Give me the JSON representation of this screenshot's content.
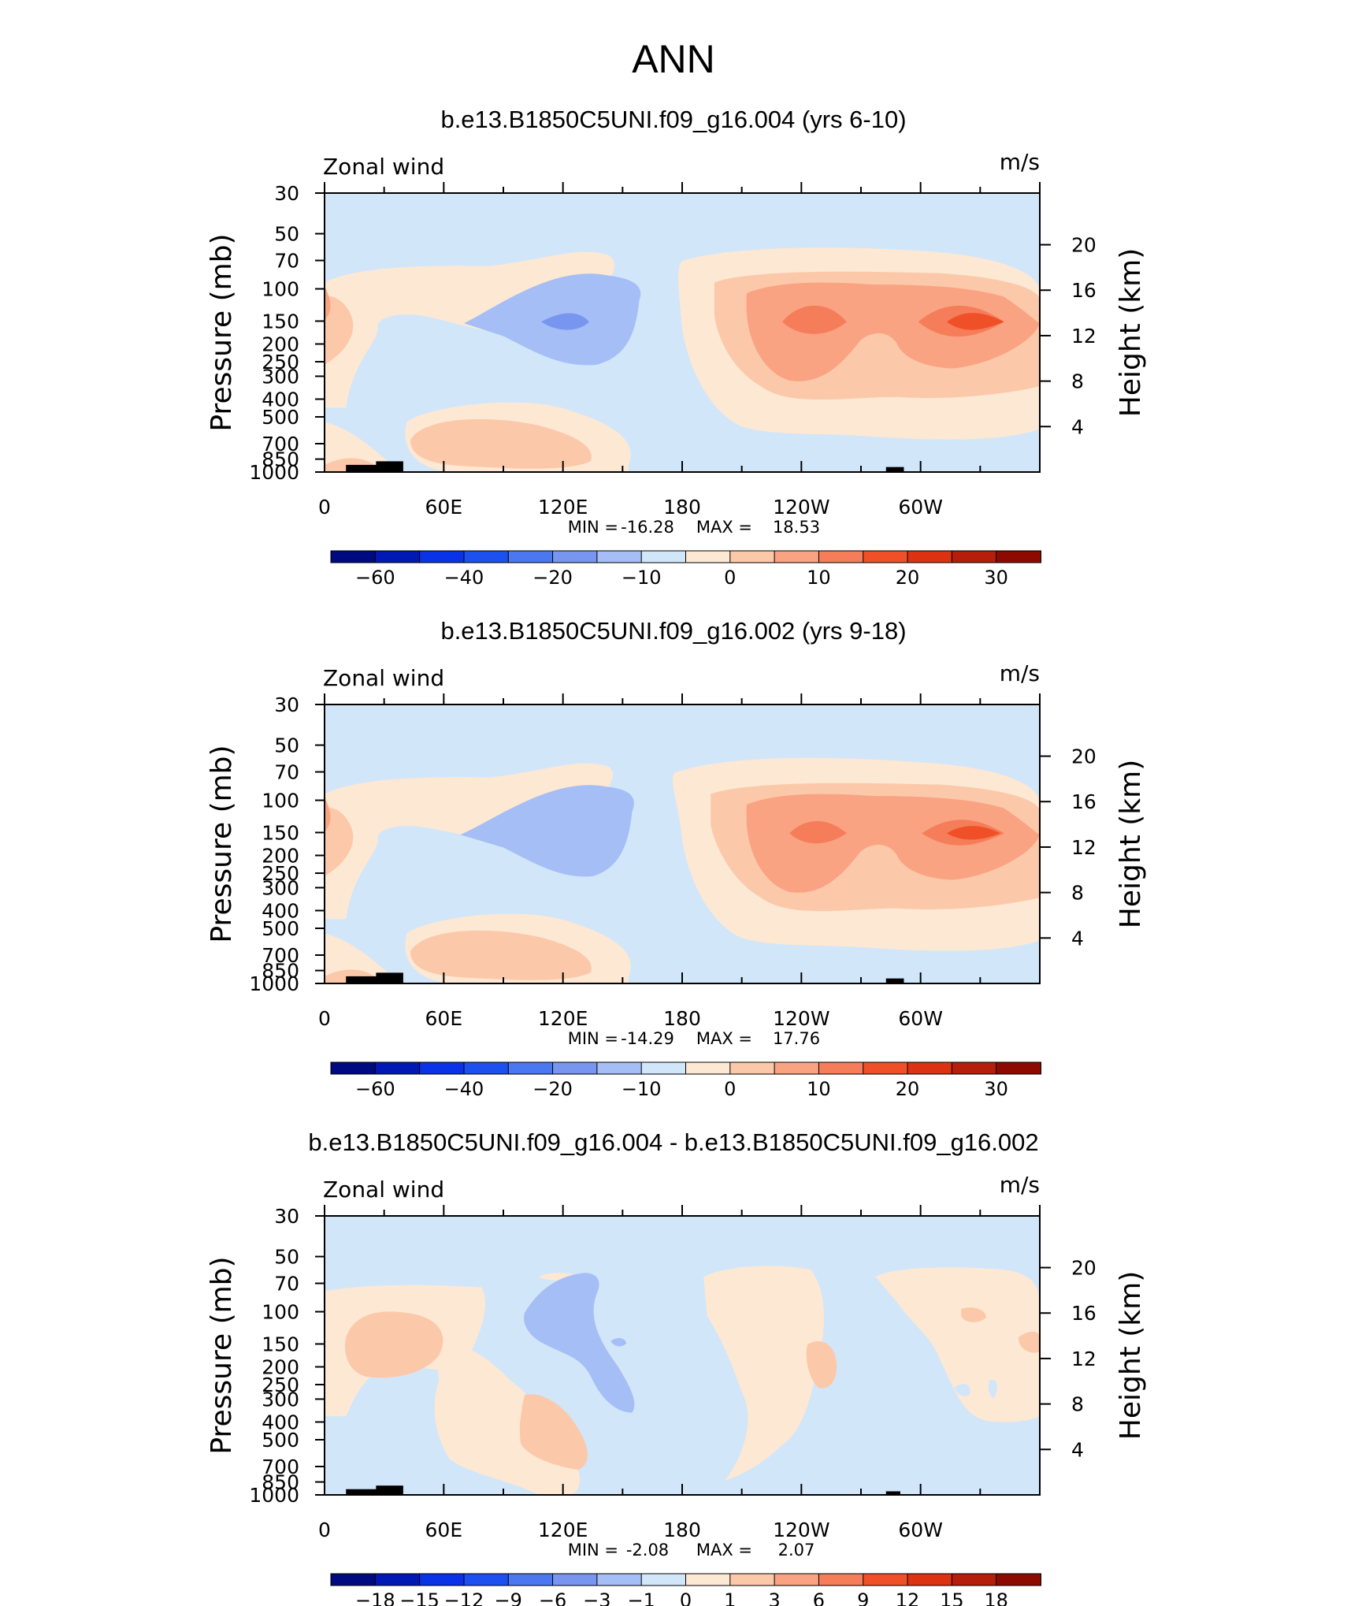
{
  "figure": {
    "title": "ANN"
  },
  "colors": {
    "land": "#000000",
    "frame": "#000000"
  },
  "chart_data": [
    {
      "type": "contour",
      "title": "b.e13.B1850C5UNI.f09_g16.004 (yrs 6-10)",
      "left_label": "Zonal wind",
      "right_label": "m/s",
      "ylabel": "Pressure (mb)",
      "ylabel_right": "Height (km)",
      "x_ticks": [
        "0",
        "60E",
        "120E",
        "180",
        "120W",
        "60W"
      ],
      "y_ticks": [
        "30",
        "50",
        "70",
        "100",
        "150",
        "200",
        "250",
        "300",
        "400",
        "500",
        "700",
        "850",
        "1000"
      ],
      "height_ticks": [
        "20",
        "16",
        "12",
        "8",
        "4"
      ],
      "min_label": "MIN =",
      "min_value": "-16.28",
      "max_label": "MAX =",
      "max_value": "18.53",
      "colorbar": {
        "colors": [
          "#000a80",
          "#0019b4",
          "#0a32e6",
          "#1e50f0",
          "#4b78f0",
          "#7896f0",
          "#a5bef5",
          "#d2e6fa",
          "#fde8d3",
          "#fcc8aa",
          "#f9a382",
          "#f57d5a",
          "#f05028",
          "#dc3212",
          "#b41e0a",
          "#8c0a00"
        ],
        "labels": [
          "-60",
          "-40",
          "-20",
          "-10",
          "0",
          "10",
          "20",
          "30"
        ],
        "label_boundaries": [
          1,
          3,
          5,
          7,
          9,
          11,
          13,
          15
        ]
      }
    },
    {
      "type": "contour",
      "title": "b.e13.B1850C5UNI.f09_g16.002 (yrs 9-18)",
      "left_label": "Zonal wind",
      "right_label": "m/s",
      "ylabel": "Pressure (mb)",
      "ylabel_right": "Height (km)",
      "x_ticks": [
        "0",
        "60E",
        "120E",
        "180",
        "120W",
        "60W"
      ],
      "y_ticks": [
        "30",
        "50",
        "70",
        "100",
        "150",
        "200",
        "250",
        "300",
        "400",
        "500",
        "700",
        "850",
        "1000"
      ],
      "height_ticks": [
        "20",
        "16",
        "12",
        "8",
        "4"
      ],
      "min_label": "MIN =",
      "min_value": "-14.29",
      "max_label": "MAX =",
      "max_value": "17.76",
      "colorbar": {
        "colors": [
          "#000a80",
          "#0019b4",
          "#0a32e6",
          "#1e50f0",
          "#4b78f0",
          "#7896f0",
          "#a5bef5",
          "#d2e6fa",
          "#fde8d3",
          "#fcc8aa",
          "#f9a382",
          "#f57d5a",
          "#f05028",
          "#dc3212",
          "#b41e0a",
          "#8c0a00"
        ],
        "labels": [
          "-60",
          "-40",
          "-20",
          "-10",
          "0",
          "10",
          "20",
          "30"
        ],
        "label_boundaries": [
          1,
          3,
          5,
          7,
          9,
          11,
          13,
          15
        ]
      }
    },
    {
      "type": "contour",
      "title": "b.e13.B1850C5UNI.f09_g16.004 - b.e13.B1850C5UNI.f09_g16.002",
      "left_label": "Zonal wind",
      "right_label": "m/s",
      "ylabel": "Pressure (mb)",
      "ylabel_right": "Height (km)",
      "x_ticks": [
        "0",
        "60E",
        "120E",
        "180",
        "120W",
        "60W"
      ],
      "y_ticks": [
        "30",
        "50",
        "70",
        "100",
        "150",
        "200",
        "250",
        "300",
        "400",
        "500",
        "700",
        "850",
        "1000"
      ],
      "height_ticks": [
        "20",
        "16",
        "12",
        "8",
        "4"
      ],
      "min_label": "MIN =",
      "min_value": "-2.08",
      "max_label": "MAX =",
      "max_value": "2.07",
      "colorbar": {
        "colors": [
          "#000a80",
          "#0019b4",
          "#0a32e6",
          "#1e50f0",
          "#4b78f0",
          "#7896f0",
          "#a5bef5",
          "#d2e6fa",
          "#fde8d3",
          "#fcc8aa",
          "#f9a382",
          "#f57d5a",
          "#f05028",
          "#dc3212",
          "#b41e0a",
          "#8c0a00"
        ],
        "labels": [
          "-18",
          "-15",
          "-12",
          "-9",
          "-6",
          "-3",
          "-1",
          "0",
          "1",
          "3",
          "6",
          "9",
          "12",
          "15",
          "18"
        ],
        "label_boundaries": [
          1,
          2,
          3,
          4,
          5,
          6,
          7,
          8,
          9,
          10,
          11,
          12,
          13,
          14,
          15
        ]
      }
    }
  ]
}
